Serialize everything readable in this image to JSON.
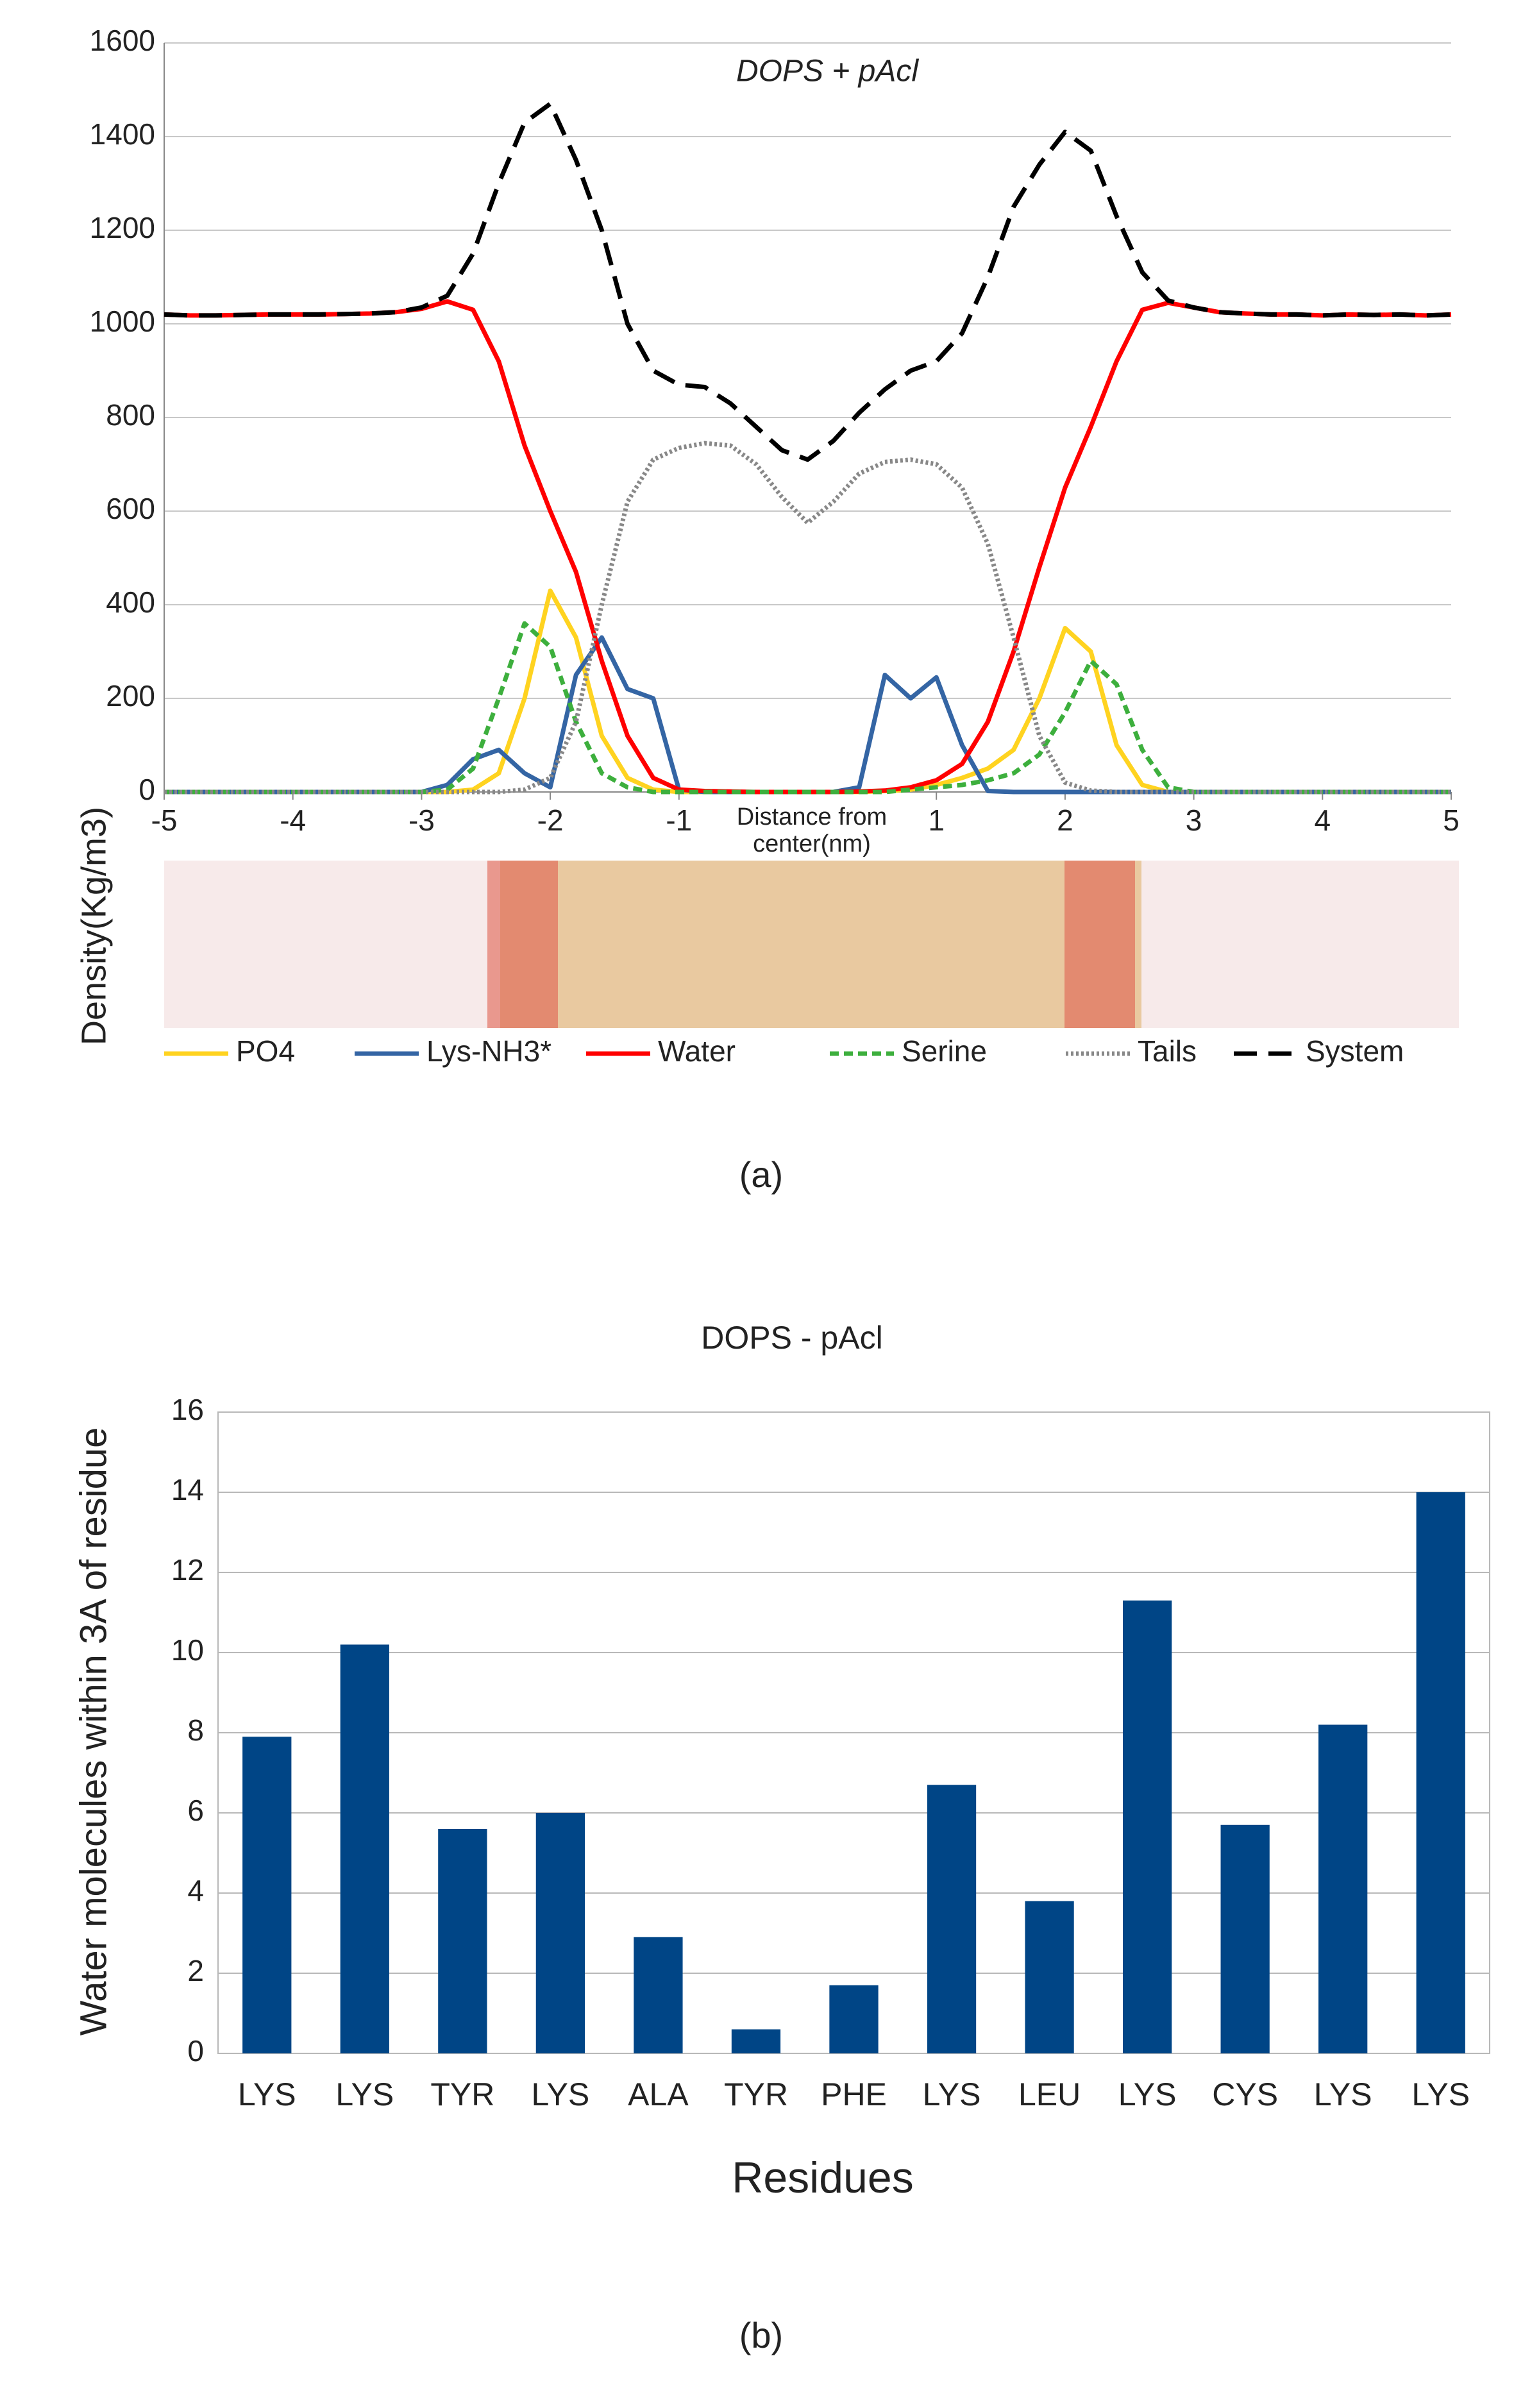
{
  "chart_data": [
    {
      "type": "line",
      "title": "DOPS + pAcl",
      "xlabel": [
        "Distance from",
        "center(nm)"
      ],
      "ylabel": "Density(Kg/m3)",
      "panel_label": "(a)",
      "x": [
        -5,
        -4.8,
        -4.6,
        -4.4,
        -4.2,
        -4,
        -3.8,
        -3.6,
        -3.4,
        -3.2,
        -3,
        -2.8,
        -2.6,
        -2.4,
        -2.2,
        -2,
        -1.8,
        -1.6,
        -1.4,
        -1.2,
        -1,
        -0.8,
        -0.6,
        -0.4,
        -0.2,
        0,
        0.2,
        0.4,
        0.6,
        0.8,
        1,
        1.2,
        1.4,
        1.6,
        1.8,
        2,
        2.2,
        2.4,
        2.6,
        2.8,
        3,
        3.2,
        3.4,
        3.6,
        3.8,
        4,
        4.2,
        4.4,
        4.6,
        4.8,
        5
      ],
      "xlim": [
        -5,
        5
      ],
      "xticks": [
        -5,
        -4,
        -3,
        -2,
        -1,
        1,
        2,
        3,
        4,
        5
      ],
      "ylim": [
        0,
        1600
      ],
      "yticks": [
        0,
        200,
        400,
        600,
        800,
        1000,
        1200,
        1400,
        1600
      ],
      "grid": true,
      "series": [
        {
          "name": "PO4",
          "color": "#ffd320",
          "dash": "solid",
          "values": [
            0,
            0,
            0,
            0,
            0,
            0,
            0,
            0,
            0,
            0,
            0,
            0,
            5,
            40,
            200,
            430,
            330,
            120,
            30,
            5,
            0,
            0,
            0,
            0,
            0,
            0,
            0,
            0,
            2,
            5,
            15,
            30,
            50,
            90,
            200,
            350,
            300,
            100,
            15,
            0,
            0,
            0,
            0,
            0,
            0,
            0,
            0,
            0,
            0,
            0,
            0
          ]
        },
        {
          "name": "Lys-NH3*",
          "color": "#3465a4",
          "dash": "solid",
          "values": [
            0,
            0,
            0,
            0,
            0,
            0,
            0,
            0,
            0,
            0,
            0,
            15,
            70,
            90,
            40,
            10,
            250,
            330,
            220,
            200,
            5,
            0,
            0,
            0,
            0,
            0,
            0,
            10,
            250,
            200,
            245,
            100,
            2,
            0,
            0,
            0,
            0,
            0,
            0,
            0,
            0,
            0,
            0,
            0,
            0,
            0,
            0,
            0,
            0,
            0,
            0
          ]
        },
        {
          "name": "Water",
          "color": "#ff0000",
          "dash": "solid",
          "values": [
            1020,
            1018,
            1018,
            1019,
            1020,
            1020,
            1020,
            1021,
            1022,
            1025,
            1032,
            1048,
            1030,
            920,
            740,
            600,
            470,
            280,
            120,
            30,
            5,
            2,
            1,
            0,
            0,
            0,
            0,
            1,
            3,
            10,
            25,
            60,
            150,
            300,
            480,
            650,
            780,
            920,
            1030,
            1045,
            1035,
            1025,
            1022,
            1020,
            1020,
            1018,
            1020,
            1019,
            1020,
            1018,
            1020
          ]
        },
        {
          "name": "Serine",
          "color": "#3daf3d",
          "dash": "dashed",
          "values": [
            0,
            0,
            0,
            0,
            0,
            0,
            0,
            0,
            0,
            0,
            0,
            5,
            50,
            200,
            360,
            310,
            150,
            40,
            10,
            0,
            0,
            0,
            0,
            0,
            0,
            0,
            0,
            0,
            0,
            5,
            10,
            15,
            25,
            40,
            80,
            170,
            280,
            230,
            90,
            10,
            0,
            0,
            0,
            0,
            0,
            0,
            0,
            0,
            0,
            0,
            0
          ]
        },
        {
          "name": "Tails",
          "color": "#888888",
          "dash": "dotted",
          "values": [
            0,
            0,
            0,
            0,
            0,
            0,
            0,
            0,
            0,
            0,
            0,
            0,
            0,
            0,
            5,
            30,
            150,
            400,
            620,
            710,
            735,
            745,
            740,
            700,
            630,
            575,
            620,
            680,
            705,
            710,
            700,
            650,
            530,
            330,
            120,
            20,
            3,
            0,
            0,
            0,
            0,
            0,
            0,
            0,
            0,
            0,
            0,
            0,
            0,
            0,
            0
          ]
        },
        {
          "name": "System",
          "color": "#000000",
          "dash": "longdash",
          "values": [
            1020,
            1018,
            1018,
            1019,
            1020,
            1020,
            1020,
            1021,
            1022,
            1025,
            1035,
            1060,
            1150,
            1300,
            1430,
            1470,
            1350,
            1200,
            1000,
            900,
            870,
            865,
            830,
            780,
            730,
            710,
            750,
            810,
            860,
            900,
            920,
            980,
            1100,
            1250,
            1340,
            1410,
            1370,
            1230,
            1110,
            1050,
            1035,
            1025,
            1022,
            1020,
            1020,
            1018,
            1020,
            1019,
            1020,
            1018,
            1020
          ]
        }
      ]
    },
    {
      "type": "bar",
      "title": "DOPS - pAcl",
      "xlabel": "Residues",
      "ylabel": "Water molecules within 3A of residue",
      "panel_label": "(b)",
      "categories": [
        "LYS",
        "LYS",
        "TYR",
        "LYS",
        "ALA",
        "TYR",
        "PHE",
        "LYS",
        "LEU",
        "LYS",
        "CYS",
        "LYS",
        "LYS"
      ],
      "values": [
        7.9,
        10.2,
        5.6,
        6.0,
        2.9,
        0.6,
        1.7,
        6.7,
        3.8,
        11.3,
        5.7,
        8.2,
        14.0
      ],
      "color": "#004586",
      "ylim": [
        0,
        16
      ],
      "yticks": [
        0,
        2,
        4,
        6,
        8,
        10,
        12,
        14,
        16
      ],
      "grid": true
    }
  ]
}
